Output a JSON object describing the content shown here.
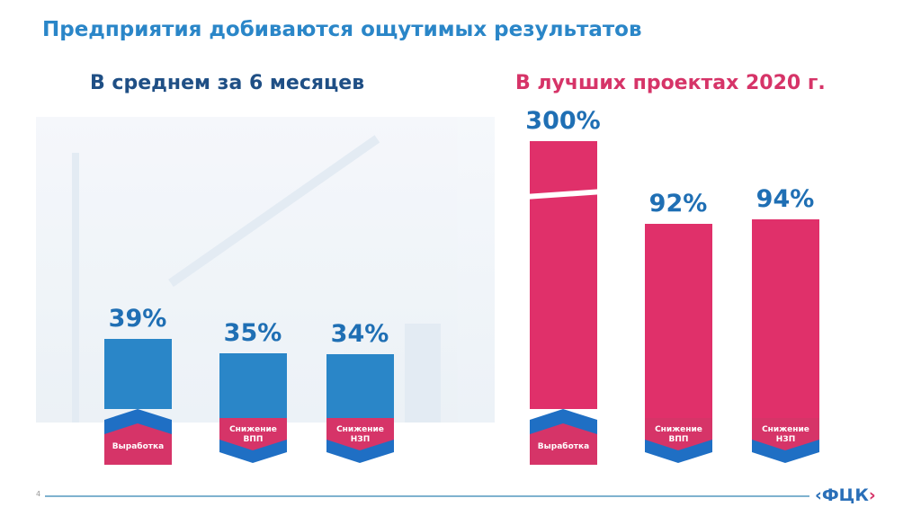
{
  "title": "Предприятия добиваются ощутимых результатов",
  "page_number": "4",
  "logo": "ФЦК",
  "colors": {
    "blue": "#2a86c8",
    "pink": "#e0306a",
    "dark_blue": "#1f4f85",
    "title_pink": "#d63468"
  },
  "chart_data": [
    {
      "type": "bar",
      "title": "В среднем за 6 месяцев",
      "categories": [
        "Выработка",
        "Снижение ВПП",
        "Снижение НЗП"
      ],
      "values": [
        39,
        35,
        34
      ],
      "data_labels": [
        "39%",
        "35%",
        "34%"
      ],
      "unit": "%",
      "bar_color": "#2a86c8"
    },
    {
      "type": "bar",
      "title": "В лучших проектах 2020 г.",
      "categories": [
        "Выработка",
        "Снижение ВПП",
        "Снижение НЗП"
      ],
      "values": [
        300,
        92,
        94
      ],
      "data_labels": [
        "300%",
        "92%",
        "94%"
      ],
      "unit": "%",
      "bar_color": "#e0306a",
      "axis_break_on": "Выработка"
    }
  ],
  "labels": [
    [
      "Выработка"
    ],
    [
      "Снижение",
      "ВПП"
    ],
    [
      "Снижение",
      "НЗП"
    ]
  ]
}
